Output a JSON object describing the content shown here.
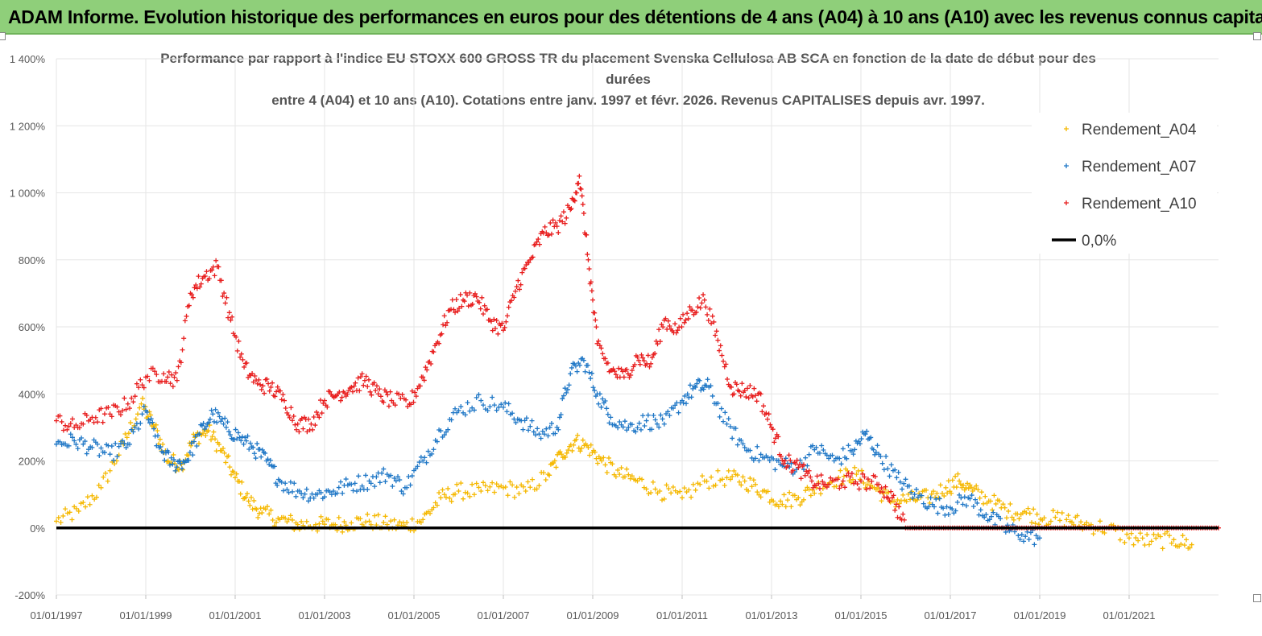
{
  "banner": {
    "title": "ADAM Informe. Evolution historique des performances en euros pour des détentions de 4 ans (A04) à 10 ans (A10) avec les revenus connus capitalisés",
    "bg_color": "#8fcf7a"
  },
  "chart_data": {
    "type": "scatter",
    "title_lines": [
      "Performance par rapport à l'indice EU STOXX 600 GROSS TR  du placement Svenska Cellulosa AB SCA en fonction de la date de début pour des",
      "durées",
      "entre 4 (A04) et 10 ans (A10). Cotations entre janv. 1997 et févr. 2026. Revenus CAPITALISES depuis avr. 1997."
    ],
    "xlabel": "",
    "ylabel": "",
    "xlim": [
      1997.0,
      2023.0
    ],
    "ylim": [
      -200,
      1400
    ],
    "y_ticks": [
      1400,
      1200,
      1000,
      800,
      600,
      400,
      200,
      0,
      -200
    ],
    "y_tick_labels": [
      "1 400%",
      "1 200%",
      "1 000%",
      "800%",
      "600%",
      "400%",
      "200%",
      "0%",
      "-200%"
    ],
    "x_ticks": [
      1997,
      1999,
      2001,
      2003,
      2005,
      2007,
      2009,
      2011,
      2013,
      2015,
      2017,
      2019,
      2021
    ],
    "x_tick_labels": [
      "01/01/1997",
      "01/01/1999",
      "01/01/2001",
      "01/01/2003",
      "01/01/2005",
      "01/01/2007",
      "01/01/2009",
      "01/01/2011",
      "01/01/2013",
      "01/01/2015",
      "01/01/2017",
      "01/01/2019",
      "01/01/2021"
    ],
    "legend_position": "right",
    "series": [
      {
        "name": "Rendement_A04",
        "color": "#f5b800",
        "marker": "+",
        "x": [
          1997.0,
          1997.5,
          1998.0,
          1998.5,
          1998.9,
          1999.2,
          1999.5,
          1999.8,
          2000.1,
          2000.4,
          2000.7,
          2001.0,
          2001.3,
          2001.6,
          2002.0,
          2002.4,
          2002.8,
          2003.2,
          2003.6,
          2004.0,
          2004.4,
          2004.8,
          2005.2,
          2005.6,
          2006.0,
          2006.5,
          2007.0,
          2007.5,
          2008.0,
          2008.3,
          2008.6,
          2008.9,
          2009.2,
          2009.6,
          2010.0,
          2010.5,
          2011.0,
          2011.5,
          2012.0,
          2012.4,
          2012.8,
          2013.2,
          2013.6,
          2014.0,
          2014.5,
          2014.9,
          2015.3,
          2015.7,
          2016.1,
          2016.5,
          2016.9,
          2017.2,
          2017.5,
          2017.9,
          2018.3,
          2018.7,
          2019.1,
          2019.6,
          2020.0,
          2020.5,
          2021.0,
          2021.5,
          2022.0,
          2022.4
        ],
        "y": [
          20,
          50,
          120,
          250,
          370,
          300,
          200,
          190,
          270,
          290,
          230,
          150,
          80,
          45,
          25,
          10,
          10,
          10,
          15,
          20,
          10,
          5,
          25,
          90,
          110,
          110,
          120,
          110,
          160,
          220,
          260,
          240,
          200,
          160,
          140,
          110,
          90,
          140,
          150,
          140,
          110,
          80,
          90,
          120,
          150,
          160,
          120,
          80,
          85,
          90,
          120,
          140,
          110,
          80,
          50,
          45,
          30,
          25,
          10,
          0,
          -30,
          -40,
          -35,
          -50
        ]
      },
      {
        "name": "Rendement_A07",
        "color": "#1f77c6",
        "marker": "+",
        "x": [
          1997.0,
          1997.4,
          1997.8,
          1998.2,
          1998.6,
          1999.0,
          1999.3,
          1999.6,
          1999.9,
          2000.2,
          2000.5,
          2000.8,
          2001.1,
          2001.4,
          2001.7,
          2002.0,
          2002.4,
          2002.8,
          2003.2,
          2003.6,
          2004.0,
          2004.4,
          2004.8,
          2005.2,
          2005.6,
          2006.0,
          2006.5,
          2007.0,
          2007.4,
          2007.8,
          2008.2,
          2008.5,
          2008.8,
          2009.1,
          2009.4,
          2009.8,
          2010.2,
          2010.6,
          2011.0,
          2011.3,
          2011.6,
          2012.0,
          2012.4,
          2012.8,
          2013.2,
          2013.6,
          2014.0,
          2014.4,
          2014.8,
          2015.1,
          2015.4,
          2015.8,
          2016.2,
          2016.6,
          2017.0,
          2017.4,
          2017.8,
          2018.2,
          2018.6,
          2019.0
        ],
        "y": [
          250,
          260,
          240,
          220,
          250,
          350,
          240,
          190,
          200,
          280,
          340,
          300,
          270,
          240,
          200,
          140,
          110,
          100,
          110,
          130,
          140,
          160,
          120,
          200,
          290,
          350,
          380,
          360,
          320,
          280,
          300,
          460,
          500,
          400,
          330,
          300,
          320,
          310,
          380,
          420,
          420,
          310,
          240,
          210,
          190,
          180,
          240,
          200,
          230,
          280,
          220,
          150,
          100,
          70,
          60,
          90,
          40,
          0,
          -20,
          -30
        ]
      },
      {
        "name": "Rendement_A10",
        "color": "#e81e1e",
        "marker": "+",
        "x": [
          1997.0,
          1997.4,
          1997.8,
          1998.2,
          1998.6,
          1999.0,
          1999.4,
          1999.7,
          2000.0,
          2000.3,
          2000.6,
          2000.9,
          2001.2,
          2001.5,
          2001.8,
          2002.1,
          2002.4,
          2002.7,
          2003.0,
          2003.3,
          2003.6,
          2003.9,
          2004.2,
          2004.5,
          2004.9,
          2005.2,
          2005.5,
          2005.8,
          2006.1,
          2006.4,
          2006.7,
          2007.0,
          2007.3,
          2007.6,
          2007.9,
          2008.2,
          2008.5,
          2008.7,
          2008.9,
          2009.1,
          2009.4,
          2009.7,
          2010.0,
          2010.3,
          2010.6,
          2010.9,
          2011.2,
          2011.5,
          2011.8,
          2012.1,
          2012.4,
          2012.7,
          2013.0,
          2013.3,
          2013.6,
          2013.9,
          2014.2,
          2014.6,
          2015.0,
          2015.4,
          2015.7,
          2016.0,
          2016.5,
          2017.0,
          2017.5,
          2018.0,
          2018.5,
          2019.0,
          2019.5,
          2020.0,
          2020.5,
          2021.0,
          2021.5,
          2022.0,
          2022.5,
          2023.0
        ],
        "y": [
          320,
          300,
          330,
          340,
          370,
          450,
          460,
          440,
          700,
          750,
          780,
          620,
          480,
          430,
          420,
          380,
          310,
          310,
          380,
          400,
          420,
          440,
          400,
          380,
          370,
          450,
          550,
          650,
          680,
          690,
          620,
          590,
          720,
          800,
          880,
          900,
          950,
          1050,
          800,
          550,
          470,
          450,
          510,
          490,
          620,
          590,
          650,
          680,
          560,
          420,
          410,
          400,
          300,
          200,
          180,
          140,
          130,
          140,
          140,
          130,
          90,
          0,
          0,
          0,
          0,
          0,
          0,
          0,
          0,
          0,
          0,
          0,
          0,
          0,
          0,
          0
        ]
      },
      {
        "name": "0,0%",
        "color": "#000000",
        "marker": "line",
        "x": [
          1997.0,
          2023.0
        ],
        "y": [
          0,
          0
        ]
      }
    ]
  }
}
